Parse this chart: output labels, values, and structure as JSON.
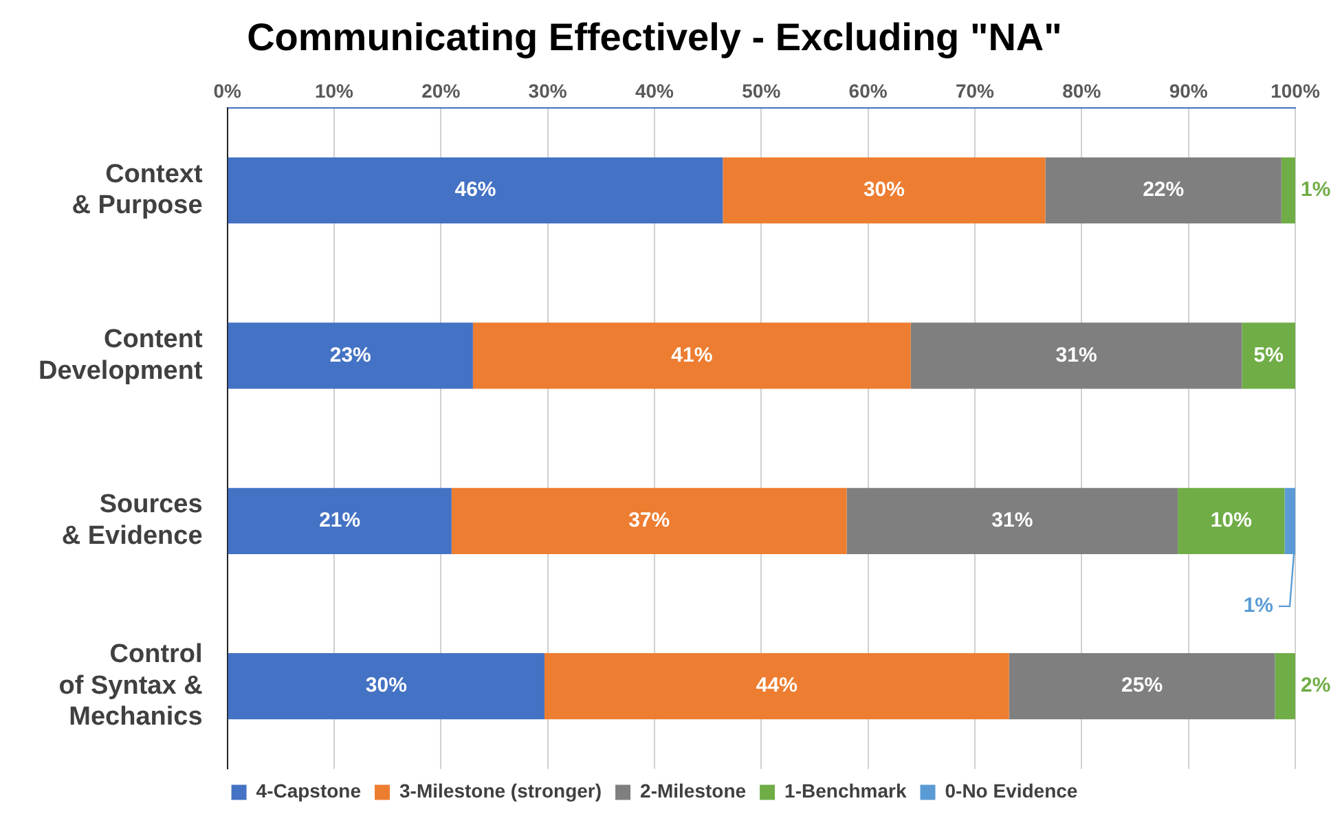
{
  "chart_data": {
    "type": "bar",
    "orientation": "horizontal",
    "stacked": true,
    "title": "Communicating Effectively - Excluding \"NA\"",
    "categories": [
      "Context\n& Purpose",
      "Content\nDevelopment",
      "Sources\n& Evidence",
      "Control\nof Syntax &\nMechanics"
    ],
    "series": [
      {
        "name": "4-Capstone",
        "color": "#4472c4",
        "values": [
          46.4,
          23,
          21,
          29.7
        ],
        "value_labels": [
          "46%",
          "23%",
          "21%",
          "30%"
        ]
      },
      {
        "name": "3-Milestone (stronger)",
        "color": "#ed7d31",
        "values": [
          30.2,
          41,
          37,
          43.5
        ],
        "value_labels": [
          "30%",
          "41%",
          "37%",
          "44%"
        ]
      },
      {
        "name": "2-Milestone",
        "color": "#7f7f7f",
        "values": [
          22.1,
          31,
          31,
          24.9
        ],
        "value_labels": [
          "22%",
          "31%",
          "31%",
          "25%"
        ]
      },
      {
        "name": "1-Benchmark",
        "color": "#70ad47",
        "values": [
          1.3,
          5,
          10,
          1.9
        ],
        "value_labels": [
          "1%",
          "5%",
          "10%",
          "2%"
        ]
      },
      {
        "name": "0-No Evidence",
        "color": "#5b9bd5",
        "values": [
          null,
          null,
          1,
          null
        ],
        "value_labels": [
          null,
          null,
          "1%",
          null
        ]
      }
    ],
    "xlim": [
      0,
      100
    ],
    "xticks": [
      {
        "value": 0,
        "label": "0%"
      },
      {
        "value": 10,
        "label": "10%"
      },
      {
        "value": 20,
        "label": "20%"
      },
      {
        "value": 30,
        "label": "30%"
      },
      {
        "value": 40,
        "label": "40%"
      },
      {
        "value": 50,
        "label": "50%"
      },
      {
        "value": 60,
        "label": "60%"
      },
      {
        "value": 70,
        "label": "70%"
      },
      {
        "value": 80,
        "label": "80%"
      },
      {
        "value": 90,
        "label": "90%"
      },
      {
        "value": 100,
        "label": "100%"
      }
    ],
    "grid": "x",
    "legend": "bottom"
  }
}
